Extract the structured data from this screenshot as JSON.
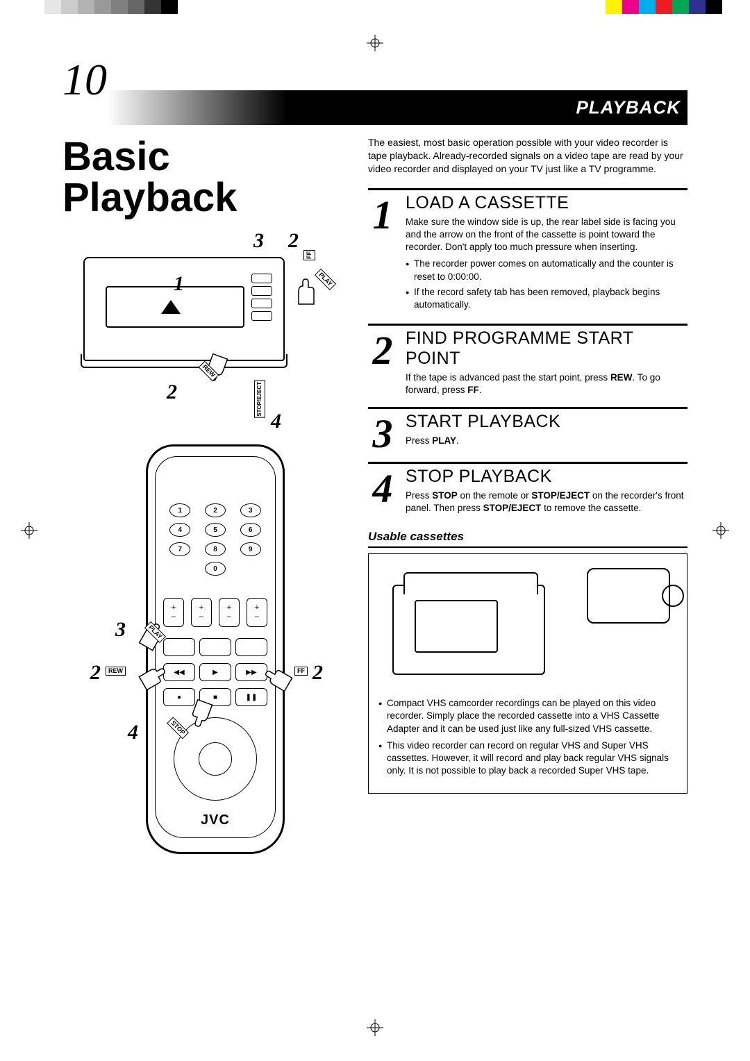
{
  "colorBars": {
    "left": [
      "#ffffff",
      "#e6e6e6",
      "#cccccc",
      "#b3b3b3",
      "#999999",
      "#808080",
      "#666666",
      "#333333",
      "#000000"
    ],
    "right": [
      "#ffffff",
      "#fff200",
      "#ec008c",
      "#00aeef",
      "#ed1c24",
      "#00a651",
      "#2e3192",
      "#000000"
    ]
  },
  "pageNumber": "10",
  "headerLabel": "PLAYBACK",
  "title": "Basic Playback",
  "brand": "JVC",
  "vcrCallouts": {
    "n1": "1",
    "n2top": "2",
    "n3": "3",
    "n2left": "2",
    "n4": "4",
    "labelFF": "FF",
    "labelPlay": "PLAY",
    "labelRew": "REW",
    "labelStopEject": "STOP/EJECT"
  },
  "remoteCallouts": {
    "n3": "3",
    "n2left": "2",
    "n2right": "2",
    "n4": "4",
    "rew": "REW",
    "ff": "FF",
    "play": "PLAY",
    "stop": "STOP",
    "numbers": [
      "1",
      "2",
      "3",
      "4",
      "5",
      "6",
      "7",
      "8",
      "9",
      "0"
    ]
  },
  "intro": "The easiest, most basic operation possible with your video recorder is tape playback. Already-recorded signals on a video tape are read by your video recorder and displayed on your TV just like a TV programme.",
  "steps": [
    {
      "num": "1",
      "title": "LOAD A CASSETTE",
      "body": "Make sure the window side is up, the rear label side is facing you and the arrow on the front of the cassette is point toward the recorder. Don't apply too much pressure when inserting.",
      "bullets": [
        "The recorder power comes on automatically and the counter is reset to 0:00:00.",
        "If the record safety tab has been removed, playback begins automatically."
      ]
    },
    {
      "num": "2",
      "title": "FIND PROGRAMME START POINT",
      "body": "If the tape is advanced past the start point, press <b>REW</b>. To go forward, press <b>FF</b>.",
      "bullets": []
    },
    {
      "num": "3",
      "title": "START PLAYBACK",
      "body": "Press <b>PLAY</b>.",
      "bullets": []
    },
    {
      "num": "4",
      "title": "STOP PLAYBACK",
      "body": "Press <b>STOP</b> on the remote or <b>STOP/EJECT</b> on the recorder's front panel. Then press <b>STOP/EJECT</b> to remove the cassette.",
      "bullets": []
    }
  ],
  "usable": {
    "heading": "Usable cassettes",
    "bullets": [
      "Compact VHS camcorder recordings can be played on this video recorder. Simply place the recorded cassette into a VHS Cassette Adapter and it can be used just like any full-sized VHS cassette.",
      "This video recorder can record on regular VHS and Super VHS cassettes. However, it will record and play back regular VHS signals only. It is not possible to play back a recorded Super VHS tape."
    ]
  }
}
